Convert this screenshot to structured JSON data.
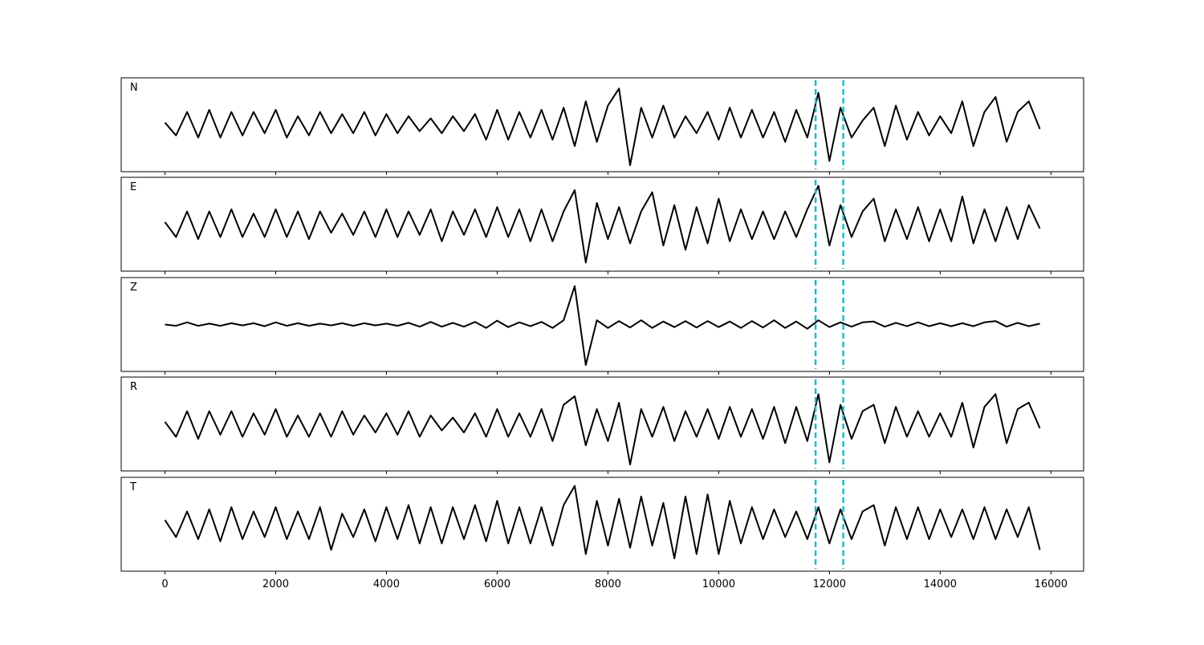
{
  "chart_data": {
    "type": "line",
    "x": [
      0,
      200,
      400,
      600,
      800,
      1000,
      1200,
      1400,
      1600,
      1800,
      2000,
      2200,
      2400,
      2600,
      2800,
      3000,
      3200,
      3400,
      3600,
      3800,
      4000,
      4200,
      4400,
      4600,
      4800,
      5000,
      5200,
      5400,
      5600,
      5800,
      6000,
      6200,
      6400,
      6600,
      6800,
      7000,
      7200,
      7400,
      7600,
      7800,
      8000,
      8200,
      8400,
      8600,
      8800,
      9000,
      9200,
      9400,
      9600,
      9800,
      10000,
      10200,
      10400,
      10600,
      10800,
      11000,
      11200,
      11400,
      11600,
      11800,
      12000,
      12200,
      12400,
      12600,
      12800,
      13000,
      13200,
      13400,
      13600,
      13800,
      14000,
      14200,
      14400,
      14600,
      14800,
      15000,
      15200,
      15400,
      15600,
      15800
    ],
    "xlim": [
      -790,
      16590
    ],
    "xticks": [
      0,
      2000,
      4000,
      6000,
      8000,
      10000,
      12000,
      14000,
      16000
    ],
    "ylim": [
      -1.1,
      1.1
    ],
    "series": [
      {
        "name": "N",
        "color": "#000000",
        "values": [
          0.05,
          -0.25,
          0.3,
          -0.3,
          0.35,
          -0.3,
          0.3,
          -0.25,
          0.3,
          -0.2,
          0.35,
          -0.3,
          0.2,
          -0.25,
          0.3,
          -0.2,
          0.25,
          -0.2,
          0.3,
          -0.25,
          0.25,
          -0.2,
          0.2,
          -0.15,
          0.15,
          -0.2,
          0.2,
          -0.15,
          0.25,
          -0.35,
          0.35,
          -0.35,
          0.3,
          -0.3,
          0.35,
          -0.35,
          0.4,
          -0.5,
          0.55,
          -0.4,
          0.45,
          0.85,
          -0.95,
          0.4,
          -0.3,
          0.45,
          -0.3,
          0.2,
          -0.2,
          0.3,
          -0.35,
          0.4,
          -0.3,
          0.35,
          -0.3,
          0.3,
          -0.4,
          0.35,
          -0.3,
          0.75,
          -0.85,
          0.4,
          -0.3,
          0.1,
          0.4,
          -0.5,
          0.45,
          -0.35,
          0.3,
          -0.25,
          0.2,
          -0.2,
          0.55,
          -0.5,
          0.3,
          0.65,
          -0.4,
          0.3,
          0.55,
          -0.1
        ]
      },
      {
        "name": "E",
        "color": "#000000",
        "values": [
          0.05,
          -0.3,
          0.3,
          -0.35,
          0.3,
          -0.3,
          0.35,
          -0.3,
          0.25,
          -0.3,
          0.35,
          -0.3,
          0.3,
          -0.35,
          0.3,
          -0.2,
          0.25,
          -0.25,
          0.3,
          -0.3,
          0.35,
          -0.3,
          0.3,
          -0.25,
          0.35,
          -0.4,
          0.3,
          -0.25,
          0.35,
          -0.3,
          0.4,
          -0.3,
          0.35,
          -0.4,
          0.35,
          -0.4,
          0.3,
          0.8,
          -0.9,
          0.5,
          -0.35,
          0.4,
          -0.45,
          0.3,
          0.75,
          -0.5,
          0.45,
          -0.6,
          0.4,
          -0.45,
          0.6,
          -0.4,
          0.35,
          -0.35,
          0.3,
          -0.35,
          0.3,
          -0.3,
          0.35,
          0.9,
          -0.5,
          0.45,
          -0.3,
          0.3,
          0.6,
          -0.4,
          0.35,
          -0.35,
          0.4,
          -0.4,
          0.35,
          -0.4,
          0.65,
          -0.45,
          0.35,
          -0.4,
          0.4,
          -0.35,
          0.45,
          -0.1
        ]
      },
      {
        "name": "Z",
        "color": "#000000",
        "values": [
          0,
          -0.03,
          0.05,
          -0.03,
          0.02,
          -0.03,
          0.03,
          -0.02,
          0.03,
          -0.04,
          0.05,
          -0.03,
          0.03,
          -0.03,
          0.02,
          -0.02,
          0.03,
          -0.03,
          0.03,
          -0.02,
          0.02,
          -0.03,
          0.04,
          -0.05,
          0.06,
          -0.05,
          0.04,
          -0.05,
          0.06,
          -0.08,
          0.09,
          -0.06,
          0.05,
          -0.04,
          0.06,
          -0.08,
          0.1,
          0.9,
          -0.95,
          0.1,
          -0.08,
          0.08,
          -0.07,
          0.1,
          -0.08,
          0.07,
          -0.06,
          0.08,
          -0.07,
          0.08,
          -0.06,
          0.07,
          -0.08,
          0.08,
          -0.07,
          0.1,
          -0.08,
          0.07,
          -0.1,
          0.1,
          -0.06,
          0.05,
          -0.05,
          0.05,
          0.07,
          -0.05,
          0.04,
          -0.04,
          0.05,
          -0.04,
          0.03,
          -0.04,
          0.03,
          -0.04,
          0.05,
          0.08,
          -0.05,
          0.04,
          -0.04,
          0.02
        ]
      },
      {
        "name": "R",
        "color": "#000000",
        "values": [
          0.05,
          -0.3,
          0.3,
          -0.35,
          0.3,
          -0.25,
          0.3,
          -0.3,
          0.25,
          -0.25,
          0.35,
          -0.3,
          0.2,
          -0.3,
          0.25,
          -0.3,
          0.3,
          -0.25,
          0.2,
          -0.2,
          0.25,
          -0.25,
          0.3,
          -0.3,
          0.2,
          -0.15,
          0.15,
          -0.2,
          0.25,
          -0.3,
          0.35,
          -0.3,
          0.25,
          -0.3,
          0.35,
          -0.4,
          0.45,
          0.65,
          -0.5,
          0.35,
          -0.4,
          0.5,
          -0.95,
          0.35,
          -0.3,
          0.4,
          -0.4,
          0.3,
          -0.3,
          0.35,
          -0.35,
          0.4,
          -0.3,
          0.35,
          -0.35,
          0.4,
          -0.45,
          0.4,
          -0.4,
          0.7,
          -0.9,
          0.45,
          -0.35,
          0.3,
          0.45,
          -0.45,
          0.4,
          -0.3,
          0.3,
          -0.3,
          0.25,
          -0.3,
          0.5,
          -0.55,
          0.4,
          0.7,
          -0.45,
          0.35,
          0.5,
          -0.1
        ]
      },
      {
        "name": "T",
        "color": "#000000",
        "values": [
          0.1,
          -0.3,
          0.3,
          -0.35,
          0.35,
          -0.4,
          0.4,
          -0.35,
          0.3,
          -0.3,
          0.4,
          -0.35,
          0.3,
          -0.35,
          0.4,
          -0.6,
          0.25,
          -0.3,
          0.35,
          -0.4,
          0.4,
          -0.35,
          0.45,
          -0.45,
          0.4,
          -0.45,
          0.4,
          -0.35,
          0.45,
          -0.4,
          0.55,
          -0.45,
          0.4,
          -0.45,
          0.4,
          -0.5,
          0.45,
          0.9,
          -0.7,
          0.55,
          -0.5,
          0.6,
          -0.55,
          0.65,
          -0.5,
          0.5,
          -0.8,
          0.65,
          -0.7,
          0.7,
          -0.7,
          0.55,
          -0.45,
          0.4,
          -0.35,
          0.35,
          -0.3,
          0.3,
          -0.35,
          0.4,
          -0.45,
          0.35,
          -0.35,
          0.3,
          0.45,
          -0.5,
          0.4,
          -0.35,
          0.4,
          -0.35,
          0.35,
          -0.3,
          0.35,
          -0.35,
          0.4,
          -0.35,
          0.35,
          -0.3,
          0.4,
          -0.6
        ]
      }
    ],
    "markers": [
      11750,
      12250
    ],
    "marker_color": "#17becf"
  }
}
